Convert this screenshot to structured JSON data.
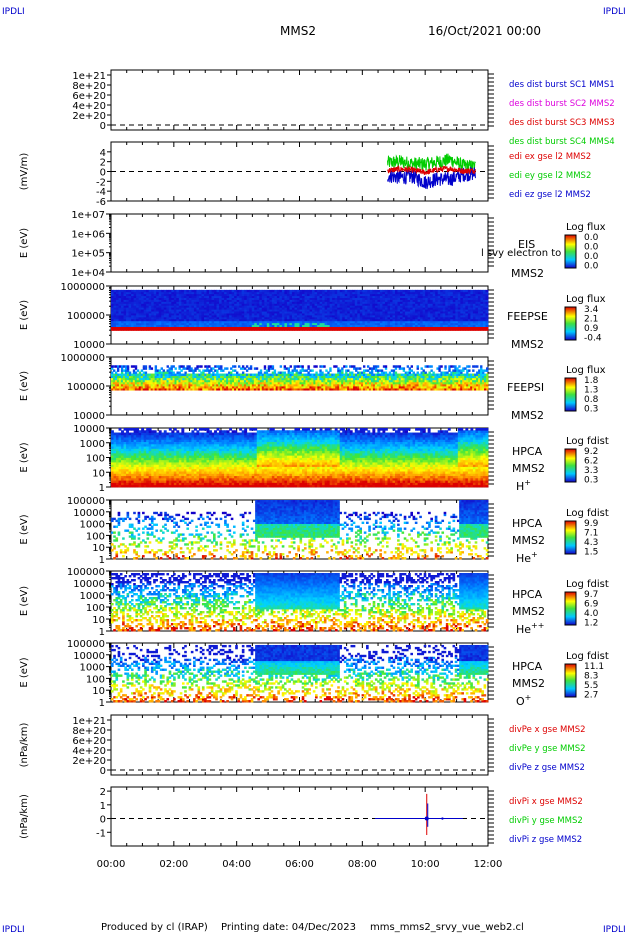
{
  "header": {
    "corner_left_top": "IPDLI",
    "corner_right_top": "IPDLI",
    "corner_left_bottom": "IPDLI",
    "corner_right_bottom": "IPDLI",
    "spacecraft": "MMS2",
    "date": "16/Oct/2021 00:00"
  },
  "footer": {
    "produced": "Produced by cl (IRAP)",
    "printing": "Printing date: 04/Dec/2023",
    "file": "mms_mms2_srvy_vue_web2.cl"
  },
  "colors": {
    "red": "#dd0000",
    "magenta": "#dd00dd",
    "green": "#00cc00",
    "blue": "#0000cc",
    "black": "#000000"
  },
  "chart_data": [
    {
      "type": "line",
      "ylabel": "",
      "ylim": [
        -1e+20,
        1.1e+21
      ],
      "yticks": [
        "0",
        "2e+20",
        "4e+20",
        "6e+20",
        "8e+20",
        "1e+21"
      ],
      "legend": [
        {
          "text": "des dist burst SC1 MMS1",
          "color": "#0000cc"
        },
        {
          "text": "des dist burst SC2 MMS2",
          "color": "#dd00dd"
        },
        {
          "text": "des dist burst SC3 MMS3",
          "color": "#dd0000"
        },
        {
          "text": "des dist burst SC4 MMS4",
          "color": "#00cc00"
        }
      ],
      "series": []
    },
    {
      "type": "line",
      "ylabel": "(mV/m)",
      "ylim": [
        -6,
        6
      ],
      "yticks": [
        "-6",
        "-4",
        "-2",
        "0",
        "2",
        "4"
      ],
      "legend": [
        {
          "text": "edi ex gse l2 MMS2",
          "color": "#dd0000"
        },
        {
          "text": "edi ey gse l2 MMS2",
          "color": "#00cc00"
        },
        {
          "text": "edi ez gse l2 MMS2",
          "color": "#0000cc"
        }
      ],
      "series": [
        {
          "name": "edi ex gse l2 MMS2",
          "x_hours": [
            8.8,
            9.2,
            9.6,
            10.0,
            10.4,
            10.8,
            11.2,
            11.6
          ],
          "values": [
            0.2,
            0.5,
            0.3,
            -0.2,
            0.4,
            0.6,
            0.1,
            0.2
          ]
        },
        {
          "name": "edi ey gse l2 MMS2",
          "x_hours": [
            8.8,
            9.2,
            9.6,
            10.0,
            10.4,
            10.8,
            11.2,
            11.6
          ],
          "values": [
            1.8,
            2.0,
            1.6,
            1.5,
            1.9,
            2.4,
            1.2,
            1.0
          ]
        },
        {
          "name": "edi ez gse l2 MMS2",
          "x_hours": [
            8.8,
            9.2,
            9.6,
            10.0,
            10.4,
            10.8,
            11.2,
            11.6
          ],
          "values": [
            -0.8,
            -1.2,
            -1.0,
            -2.2,
            -1.5,
            -1.6,
            -0.6,
            -0.4
          ]
        }
      ]
    },
    {
      "type": "heatmap",
      "ylabel": "E (eV)",
      "yticks": [
        "1e+04",
        "1e+05",
        "1e+06",
        "1e+07"
      ],
      "instrument": "EIS",
      "overlay_label": "l svy electron to",
      "spacecraft": "MMS2",
      "colorbar_title": "Log flux",
      "colorbar_ticks": [
        "0.0",
        "0.0",
        "0.0",
        "0.0"
      ],
      "empty": true
    },
    {
      "type": "heatmap",
      "ylabel": "E (eV)",
      "yticks": [
        "10000",
        "100000",
        "1000000"
      ],
      "instrument": "FEEPSE",
      "spacecraft": "MMS2",
      "colorbar_title": "Log flux",
      "colorbar_ticks": [
        "3.4",
        "2.1",
        "0.9",
        "-0.4"
      ]
    },
    {
      "type": "heatmap",
      "ylabel": "E (eV)",
      "yticks": [
        "10000",
        "100000",
        "1000000"
      ],
      "instrument": "FEEPSI",
      "spacecraft": "MMS2",
      "colorbar_title": "Log flux",
      "colorbar_ticks": [
        "1.8",
        "1.3",
        "0.8",
        "0.3"
      ]
    },
    {
      "type": "heatmap",
      "ylabel": "E (eV)",
      "yticks": [
        "1",
        "10",
        "100",
        "1000",
        "10000"
      ],
      "instrument": "HPCA",
      "spacecraft": "MMS2",
      "species": "H",
      "species_sup": "+",
      "colorbar_title": "Log fdist",
      "colorbar_ticks": [
        "9.2",
        "6.2",
        "3.3",
        "0.3"
      ]
    },
    {
      "type": "heatmap",
      "ylabel": "E (eV)",
      "yticks": [
        "1",
        "10",
        "100",
        "1000",
        "10000",
        "100000"
      ],
      "instrument": "HPCA",
      "spacecraft": "MMS2",
      "species": "He",
      "species_sup": "+",
      "colorbar_title": "Log fdist",
      "colorbar_ticks": [
        "9.9",
        "7.1",
        "4.3",
        "1.5"
      ]
    },
    {
      "type": "heatmap",
      "ylabel": "E (eV)",
      "yticks": [
        "1",
        "10",
        "100",
        "1000",
        "10000",
        "100000"
      ],
      "instrument": "HPCA",
      "spacecraft": "MMS2",
      "species": "He",
      "species_sup": "++",
      "colorbar_title": "Log fdist",
      "colorbar_ticks": [
        "9.7",
        "6.9",
        "4.0",
        "1.2"
      ]
    },
    {
      "type": "heatmap",
      "ylabel": "E (eV)",
      "yticks": [
        "1",
        "10",
        "100",
        "1000",
        "10000",
        "100000"
      ],
      "instrument": "HPCA",
      "spacecraft": "MMS2",
      "species": "O",
      "species_sup": "+",
      "colorbar_title": "Log fdist",
      "colorbar_ticks": [
        "11.1",
        "8.3",
        "5.5",
        "2.7"
      ]
    },
    {
      "type": "line",
      "ylabel": "(nPa/km)",
      "ylim": [
        -1e+20,
        1.1e+21
      ],
      "yticks": [
        "0",
        "2e+20",
        "4e+20",
        "6e+20",
        "8e+20",
        "1e+21"
      ],
      "legend": [
        {
          "text": "divPe x gse MMS2",
          "color": "#dd0000"
        },
        {
          "text": "divPe y gse MMS2",
          "color": "#00cc00"
        },
        {
          "text": "divPe z gse MMS2",
          "color": "#0000cc"
        }
      ],
      "series": []
    },
    {
      "type": "line",
      "ylabel": "(nPa/km)",
      "ylim": [
        -2,
        2.3
      ],
      "yticks": [
        "-1",
        "0",
        "1",
        "2"
      ],
      "legend": [
        {
          "text": "divPi x gse MMS2",
          "color": "#dd0000"
        },
        {
          "text": "divPi y gse MMS2",
          "color": "#00cc00"
        },
        {
          "text": "divPi z gse MMS2",
          "color": "#0000cc"
        }
      ],
      "series": [
        {
          "name": "divPi z gse MMS2",
          "x_hours": [
            8.4,
            10.05,
            10.1,
            11.2
          ],
          "values": [
            0,
            0,
            0,
            0
          ]
        }
      ],
      "spike": {
        "x_hours": 10.05,
        "ymin": -1.2,
        "ymax": 1.8
      }
    }
  ],
  "xaxis": {
    "xlim_hours": [
      0,
      12
    ],
    "tick_labels": [
      "00:00",
      "02:00",
      "04:00",
      "06:00",
      "08:00",
      "10:00",
      "12:00"
    ]
  }
}
